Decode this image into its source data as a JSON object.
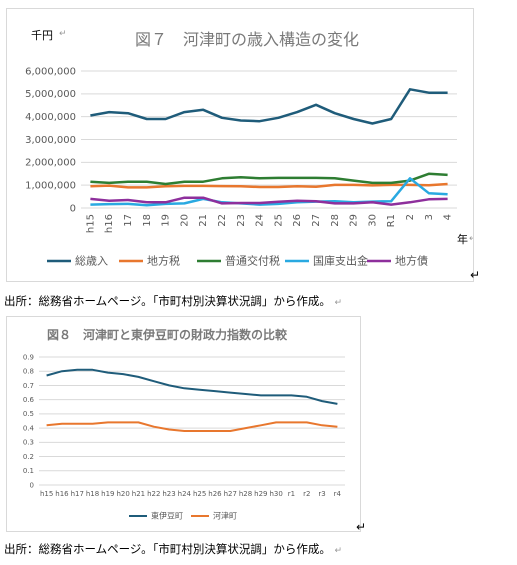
{
  "charts": [
    {
      "title": "図７　河津町の歳入構造の変化",
      "unit_label": "千円",
      "xlabel": "年",
      "chart_data": {
        "type": "line",
        "title": "図７　河津町の歳入構造の変化",
        "ylabel": "千円",
        "xlabel": "年",
        "ylim": [
          0,
          6000000
        ],
        "yticks": [
          0,
          1000000,
          2000000,
          3000000,
          4000000,
          5000000,
          6000000
        ],
        "ytick_labels": [
          "0",
          "1,000,000",
          "2,000,000",
          "3,000,000",
          "4,000,000",
          "5,000,000",
          "6,000,000"
        ],
        "grid": true,
        "legend": "bottom",
        "categories": [
          "h15",
          "h16",
          "17",
          "18",
          "19",
          "20",
          "21",
          "22",
          "23",
          "24",
          "25",
          "26",
          "27",
          "28",
          "29",
          "30",
          "R1",
          "2",
          "3",
          "4"
        ],
        "series": [
          {
            "name": "総歳入",
            "color": "#1f5c7a",
            "values": [
              4050000,
              4200000,
              4150000,
              3900000,
              3900000,
              4200000,
              4300000,
              3950000,
              3830000,
              3800000,
              3950000,
              4200000,
              4520000,
              4150000,
              3900000,
              3700000,
              3900000,
              5200000,
              5050000,
              5050000
            ]
          },
          {
            "name": "地方税",
            "color": "#e8772e",
            "values": [
              950000,
              980000,
              900000,
              900000,
              950000,
              970000,
              970000,
              960000,
              950000,
              920000,
              920000,
              950000,
              930000,
              1010000,
              1010000,
              990000,
              1010000,
              1010000,
              1000000,
              1050000
            ]
          },
          {
            "name": "普通交付税",
            "color": "#2e7d32",
            "values": [
              1150000,
              1100000,
              1150000,
              1150000,
              1050000,
              1150000,
              1150000,
              1300000,
              1350000,
              1300000,
              1320000,
              1320000,
              1320000,
              1300000,
              1200000,
              1100000,
              1100000,
              1200000,
              1500000,
              1450000
            ]
          },
          {
            "name": "国庫支出金",
            "color": "#29a9e1",
            "values": [
              150000,
              170000,
              180000,
              120000,
              180000,
              200000,
              400000,
              250000,
              200000,
              150000,
              180000,
              250000,
              280000,
              300000,
              250000,
              280000,
              300000,
              1300000,
              650000,
              600000
            ]
          },
          {
            "name": "地方債",
            "color": "#8e2f9c",
            "values": [
              400000,
              320000,
              350000,
              250000,
              250000,
              450000,
              450000,
              200000,
              220000,
              220000,
              270000,
              320000,
              300000,
              200000,
              200000,
              250000,
              150000,
              250000,
              380000,
              400000
            ]
          }
        ]
      }
    },
    {
      "title": "図８　河津町と東伊豆町の財政力指数の比較",
      "chart_data": {
        "type": "line",
        "title": "図８　河津町と東伊豆町の財政力指数の比較",
        "ylim": [
          0,
          0.9
        ],
        "yticks": [
          0,
          0.1,
          0.2,
          0.3,
          0.4,
          0.5,
          0.6,
          0.7,
          0.8,
          0.9
        ],
        "ytick_labels": [
          "0",
          "0.1",
          "0.2",
          "0.3",
          "0.4",
          "0.5",
          "0.6",
          "0.7",
          "0.8",
          "0.9"
        ],
        "grid": true,
        "legend": "bottom",
        "categories": [
          "h15",
          "h16",
          "h17",
          "h18",
          "h19",
          "h20",
          "h21",
          "h22",
          "h23",
          "h24",
          "h25",
          "h26",
          "h27",
          "h28",
          "h29",
          "h30",
          "r1",
          "r2",
          "r3",
          "r4"
        ],
        "series": [
          {
            "name": "東伊豆町",
            "color": "#1f5c7a",
            "values": [
              0.77,
              0.8,
              0.81,
              0.81,
              0.79,
              0.78,
              0.76,
              0.73,
              0.7,
              0.68,
              0.67,
              0.66,
              0.65,
              0.64,
              0.63,
              0.63,
              0.63,
              0.62,
              0.59,
              0.57
            ]
          },
          {
            "name": "河津町",
            "color": "#e8772e",
            "values": [
              0.42,
              0.43,
              0.43,
              0.43,
              0.44,
              0.44,
              0.44,
              0.41,
              0.39,
              0.38,
              0.38,
              0.38,
              0.38,
              0.4,
              0.42,
              0.44,
              0.44,
              0.44,
              0.42,
              0.41
            ]
          }
        ]
      }
    }
  ],
  "captions": {
    "fig7_source": "出所：総務省ホームページ。「市町村別決算状況調」から作成。",
    "fig8_source": "出所：総務省ホームページ。「市町村別決算状況調」から作成。"
  },
  "icons": {
    "return_mark": "↵"
  }
}
